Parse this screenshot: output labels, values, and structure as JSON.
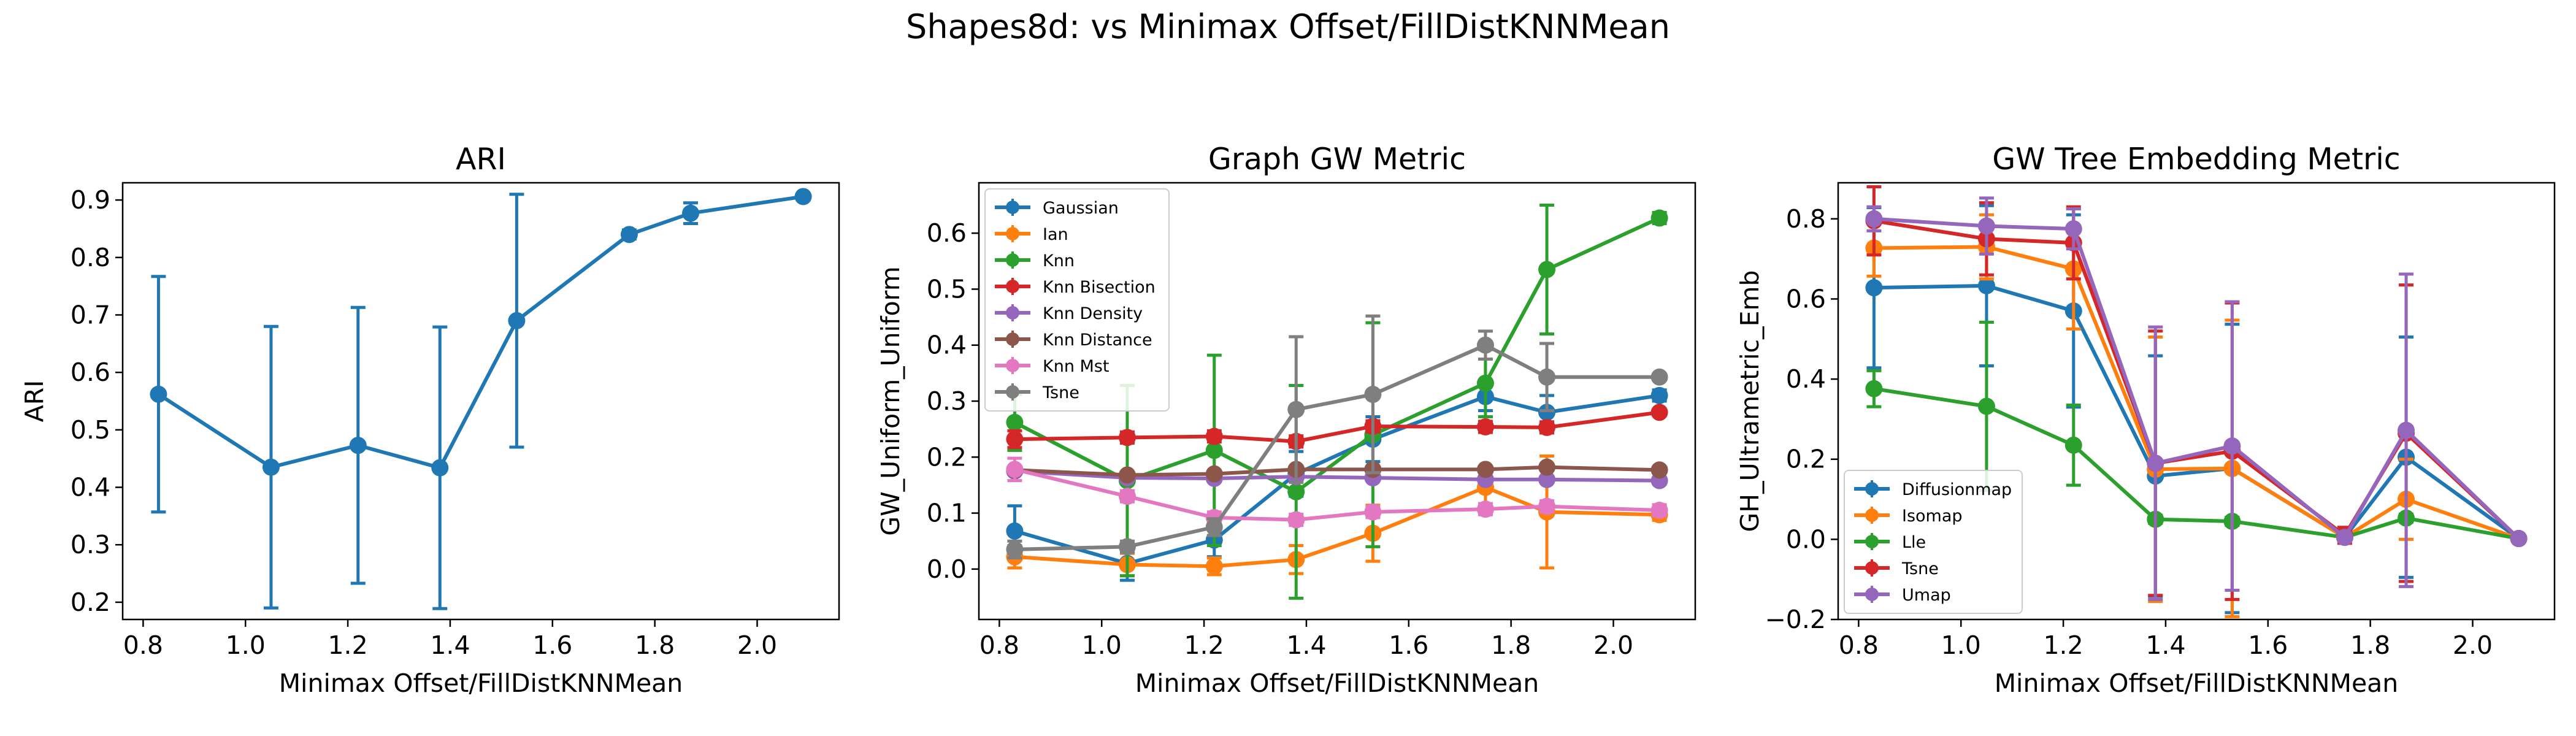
{
  "figure": {
    "title": "Shapes8d: vs Minimax Offset/FillDistKNNMean"
  },
  "chart_data": [
    {
      "type": "line",
      "title": "ARI",
      "xlabel": "Minimax Offset/FillDistKNNMean",
      "ylabel": "ARI",
      "xlim": [
        0.76,
        2.16
      ],
      "ylim": [
        0.17,
        0.93
      ],
      "xticks": [
        0.8,
        1.0,
        1.2,
        1.4,
        1.6,
        1.8,
        2.0
      ],
      "xtick_labels": [
        "0.8",
        "1.0",
        "1.2",
        "1.4",
        "1.6",
        "1.8",
        "2.0"
      ],
      "yticks": [
        0.2,
        0.3,
        0.4,
        0.5,
        0.6,
        0.7,
        0.8,
        0.9
      ],
      "ytick_labels": [
        "0.2",
        "0.3",
        "0.4",
        "0.5",
        "0.6",
        "0.7",
        "0.8",
        "0.9"
      ],
      "legend": null,
      "x": [
        0.83,
        1.05,
        1.22,
        1.38,
        1.53,
        1.75,
        1.87,
        2.09
      ],
      "series": [
        {
          "color": "#1f77b4",
          "values": [
            0.562,
            0.435,
            0.473,
            0.434,
            0.69,
            0.84,
            0.877,
            0.906
          ],
          "errors": [
            0.205,
            0.245,
            0.24,
            0.245,
            0.22,
            0.008,
            0.018,
            0.005
          ]
        }
      ]
    },
    {
      "type": "line",
      "title": "Graph GW Metric",
      "xlabel": "Minimax Offset/FillDistKNNMean",
      "ylabel": "GW_Uniform_Uniform",
      "xlim": [
        0.76,
        2.16
      ],
      "ylim": [
        -0.09,
        0.69
      ],
      "xticks": [
        0.8,
        1.0,
        1.2,
        1.4,
        1.6,
        1.8,
        2.0
      ],
      "xtick_labels": [
        "0.8",
        "1.0",
        "1.2",
        "1.4",
        "1.6",
        "1.8",
        "2.0"
      ],
      "yticks": [
        0.0,
        0.1,
        0.2,
        0.3,
        0.4,
        0.5,
        0.6
      ],
      "ytick_labels": [
        "0.0",
        "0.1",
        "0.2",
        "0.3",
        "0.4",
        "0.5",
        "0.6"
      ],
      "legend": "upper-left",
      "x": [
        0.83,
        1.05,
        1.22,
        1.38,
        1.53,
        1.75,
        1.87,
        2.09
      ],
      "series": [
        {
          "name": "Gaussian",
          "color": "#1f77b4",
          "values": [
            0.068,
            0.01,
            0.052,
            0.17,
            0.232,
            0.308,
            0.28,
            0.31
          ],
          "errors": [
            0.045,
            0.03,
            0.03,
            0.04,
            0.04,
            0.025,
            0.03,
            0.01
          ]
        },
        {
          "name": "Ian",
          "color": "#ff7f0e",
          "values": [
            0.022,
            0.008,
            0.005,
            0.017,
            0.064,
            0.146,
            0.102,
            0.097
          ],
          "errors": [
            0.02,
            0.02,
            0.015,
            0.025,
            0.05,
            0.035,
            0.1,
            0.01
          ]
        },
        {
          "name": "Knn",
          "color": "#2ca02c",
          "values": [
            0.262,
            0.158,
            0.212,
            0.138,
            0.24,
            0.332,
            0.535,
            0.627
          ],
          "errors": [
            0.05,
            0.17,
            0.17,
            0.19,
            0.2,
            0.06,
            0.115,
            0.01
          ]
        },
        {
          "name": "Knn Bisection",
          "color": "#d62728",
          "values": [
            0.232,
            0.235,
            0.237,
            0.228,
            0.255,
            0.254,
            0.253,
            0.28
          ],
          "errors": [
            0.015,
            0.01,
            0.01,
            0.01,
            0.01,
            0.01,
            0.01,
            0.005
          ]
        },
        {
          "name": "Knn Density",
          "color": "#9467bd",
          "values": [
            0.175,
            0.163,
            0.162,
            0.165,
            0.163,
            0.16,
            0.16,
            0.158
          ],
          "errors": [
            0.005,
            0.005,
            0.005,
            0.005,
            0.005,
            0.005,
            0.005,
            0.005
          ]
        },
        {
          "name": "Knn Distance",
          "color": "#8c564b",
          "values": [
            0.177,
            0.168,
            0.17,
            0.178,
            0.178,
            0.178,
            0.182,
            0.177
          ],
          "errors": [
            0.005,
            0.005,
            0.005,
            0.005,
            0.005,
            0.005,
            0.005,
            0.005
          ]
        },
        {
          "name": "Knn Mst",
          "color": "#e377c2",
          "values": [
            0.178,
            0.13,
            0.092,
            0.088,
            0.102,
            0.107,
            0.112,
            0.105
          ],
          "errors": [
            0.02,
            0.01,
            0.01,
            0.01,
            0.01,
            0.01,
            0.01,
            0.01
          ]
        },
        {
          "name": "Tsne",
          "color": "#7f7f7f",
          "values": [
            0.035,
            0.04,
            0.075,
            0.285,
            0.312,
            0.4,
            0.343,
            0.343
          ],
          "errors": [
            0.015,
            0.01,
            0.015,
            0.13,
            0.14,
            0.025,
            0.06,
            0.005
          ]
        }
      ]
    },
    {
      "type": "line",
      "title": "GW Tree Embedding Metric",
      "xlabel": "Minimax Offset/FillDistKNNMean",
      "ylabel": "GH_Ultrametric_Emb",
      "xlim": [
        0.76,
        2.16
      ],
      "ylim": [
        -0.2,
        0.89
      ],
      "xticks": [
        0.8,
        1.0,
        1.2,
        1.4,
        1.6,
        1.8,
        2.0
      ],
      "xtick_labels": [
        "0.8",
        "1.0",
        "1.2",
        "1.4",
        "1.6",
        "1.8",
        "2.0"
      ],
      "yticks": [
        -0.2,
        0.0,
        0.2,
        0.4,
        0.6,
        0.8
      ],
      "ytick_labels": [
        "−0.2",
        "0.0",
        "0.2",
        "0.4",
        "0.6",
        "0.8"
      ],
      "legend": "lower-left",
      "x": [
        0.83,
        1.05,
        1.22,
        1.38,
        1.53,
        1.75,
        1.87,
        2.09
      ],
      "series": [
        {
          "name": "Diffusionmap",
          "color": "#1f77b4",
          "values": [
            0.628,
            0.633,
            0.57,
            0.158,
            0.177,
            0.005,
            0.205,
            0.002
          ],
          "errors": [
            0.2,
            0.2,
            0.24,
            0.3,
            0.36,
            0.01,
            0.3,
            0.005
          ]
        },
        {
          "name": "Isomap",
          "color": "#ff7f0e",
          "values": [
            0.727,
            0.73,
            0.675,
            0.175,
            0.177,
            0.005,
            0.1,
            0.002
          ],
          "errors": [
            0.07,
            0.08,
            0.15,
            0.33,
            0.37,
            0.01,
            0.1,
            0.005
          ]
        },
        {
          "name": "Lle",
          "color": "#2ca02c",
          "values": [
            0.376,
            0.332,
            0.235,
            0.05,
            0.045,
            0.005,
            0.053,
            0.002
          ],
          "errors": [
            0.045,
            0.21,
            0.1,
            0.01,
            0.01,
            0.005,
            0.01,
            0.005
          ]
        },
        {
          "name": "Tsne",
          "color": "#d62728",
          "values": [
            0.795,
            0.75,
            0.74,
            0.19,
            0.22,
            0.01,
            0.265,
            0.002
          ],
          "errors": [
            0.085,
            0.09,
            0.09,
            0.33,
            0.37,
            0.02,
            0.37,
            0.005
          ]
        },
        {
          "name": "Umap",
          "color": "#9467bd",
          "values": [
            0.8,
            0.782,
            0.775,
            0.19,
            0.233,
            0.005,
            0.272,
            0.002
          ],
          "errors": [
            0.03,
            0.07,
            0.05,
            0.34,
            0.36,
            0.01,
            0.39,
            0.005
          ]
        }
      ]
    }
  ]
}
